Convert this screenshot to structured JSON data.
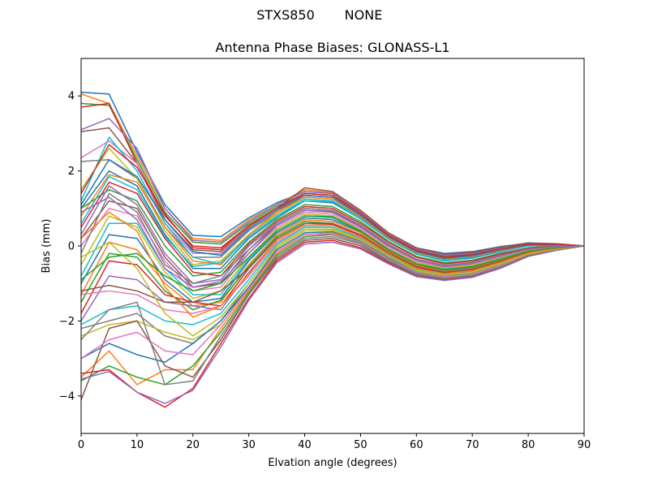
{
  "figure": {
    "suptitle_station": "STXS850",
    "suptitle_radome": "NONE"
  },
  "chart_data": {
    "type": "line",
    "title": "Antenna Phase Biases: GLONASS-L1",
    "xlabel": "Elvation angle (degrees)",
    "ylabel": "Bias (mm)",
    "xlim": [
      0,
      90
    ],
    "ylim": [
      -5,
      5
    ],
    "xticks": [
      0,
      10,
      20,
      30,
      40,
      50,
      60,
      70,
      80,
      90
    ],
    "yticks": [
      -4,
      -2,
      0,
      2,
      4
    ],
    "grid": false,
    "legend": "none",
    "x": [
      0,
      5,
      10,
      15,
      20,
      25,
      30,
      35,
      40,
      45,
      50,
      55,
      60,
      65,
      70,
      75,
      80,
      85,
      90
    ],
    "colors": [
      "#1f77b4",
      "#ff7f0e",
      "#2ca02c",
      "#d62728",
      "#9467bd",
      "#8c564b",
      "#e377c2",
      "#7f7f7f",
      "#bcbd22",
      "#17becf"
    ],
    "series": [
      {
        "values": [
          4.1,
          4.05,
          2.5,
          1.1,
          0.28,
          0.25,
          0.75,
          1.15,
          1.45,
          1.4,
          0.9,
          0.3,
          -0.05,
          -0.2,
          -0.15,
          -0.02,
          0.08,
          0.06,
          0.0
        ]
      },
      {
        "values": [
          4.05,
          3.8,
          2.4,
          1.0,
          0.2,
          0.15,
          0.7,
          1.1,
          1.5,
          1.42,
          0.92,
          0.32,
          -0.08,
          -0.25,
          -0.18,
          -0.04,
          0.06,
          0.05,
          0.0
        ]
      },
      {
        "values": [
          3.8,
          3.75,
          2.3,
          0.9,
          0.1,
          0.05,
          0.6,
          1.05,
          1.4,
          1.35,
          0.88,
          0.28,
          -0.1,
          -0.27,
          -0.2,
          -0.06,
          0.05,
          0.05,
          0.0
        ]
      },
      {
        "values": [
          3.7,
          3.8,
          2.2,
          0.8,
          0.0,
          -0.05,
          0.55,
          1.0,
          1.35,
          1.3,
          0.85,
          0.25,
          -0.12,
          -0.3,
          -0.22,
          -0.08,
          0.04,
          0.04,
          0.0
        ]
      },
      {
        "values": [
          3.1,
          3.4,
          2.6,
          1.0,
          0.15,
          0.1,
          0.65,
          1.1,
          1.45,
          1.4,
          0.9,
          0.3,
          -0.08,
          -0.25,
          -0.2,
          -0.05,
          0.06,
          0.05,
          0.0
        ]
      },
      {
        "values": [
          3.05,
          3.15,
          2.2,
          0.7,
          -0.1,
          -0.15,
          0.5,
          1.0,
          1.55,
          1.45,
          0.95,
          0.35,
          -0.05,
          -0.22,
          -0.17,
          -0.03,
          0.07,
          0.06,
          0.0
        ]
      },
      {
        "values": [
          2.35,
          2.8,
          2.2,
          0.6,
          -0.2,
          -0.2,
          0.45,
          0.95,
          1.4,
          1.35,
          0.85,
          0.28,
          -0.12,
          -0.3,
          -0.24,
          -0.08,
          0.04,
          0.05,
          0.0
        ]
      },
      {
        "values": [
          2.25,
          2.3,
          1.8,
          0.5,
          -0.3,
          -0.3,
          0.4,
          0.9,
          1.35,
          1.3,
          0.8,
          0.25,
          -0.15,
          -0.32,
          -0.26,
          -0.1,
          0.03,
          0.04,
          0.0
        ]
      },
      {
        "values": [
          1.5,
          2.6,
          1.8,
          0.4,
          -0.5,
          -0.4,
          0.3,
          0.85,
          1.3,
          1.25,
          0.78,
          0.22,
          -0.18,
          -0.35,
          -0.28,
          -0.12,
          0.02,
          0.04,
          0.0
        ]
      },
      {
        "values": [
          1.2,
          2.9,
          2.0,
          0.6,
          -0.3,
          -0.5,
          0.25,
          0.8,
          1.25,
          1.2,
          0.75,
          0.2,
          -0.2,
          -0.37,
          -0.3,
          -0.13,
          0.01,
          0.03,
          0.0
        ]
      },
      {
        "values": [
          1.0,
          2.0,
          1.6,
          0.3,
          -0.6,
          -0.6,
          0.2,
          0.75,
          1.2,
          1.15,
          0.72,
          0.18,
          -0.22,
          -0.4,
          -0.32,
          -0.15,
          0.0,
          0.03,
          0.0
        ]
      },
      {
        "values": [
          0.8,
          1.9,
          1.7,
          0.5,
          -0.4,
          -0.5,
          0.3,
          0.9,
          1.3,
          1.25,
          0.78,
          0.22,
          -0.18,
          -0.35,
          -0.28,
          -0.12,
          0.02,
          0.04,
          0.0
        ]
      },
      {
        "values": [
          1.0,
          1.5,
          1.2,
          0.0,
          -0.8,
          -0.7,
          0.1,
          0.7,
          1.1,
          1.05,
          0.65,
          0.12,
          -0.28,
          -0.45,
          -0.38,
          -0.2,
          -0.05,
          0.01,
          0.0
        ]
      },
      {
        "values": [
          0.5,
          1.7,
          1.4,
          0.2,
          -0.7,
          -0.8,
          0.05,
          0.65,
          1.05,
          1.0,
          0.6,
          0.1,
          -0.3,
          -0.48,
          -0.4,
          -0.22,
          -0.06,
          0.0,
          0.0
        ]
      },
      {
        "values": [
          0.3,
          1.6,
          1.1,
          -0.2,
          -1.0,
          -0.9,
          0.0,
          0.6,
          1.0,
          0.95,
          0.55,
          0.05,
          -0.35,
          -0.52,
          -0.44,
          -0.25,
          -0.08,
          -0.01,
          0.0
        ]
      },
      {
        "values": [
          0.2,
          1.2,
          1.0,
          -0.3,
          -1.1,
          -1.0,
          -0.1,
          0.55,
          0.95,
          0.9,
          0.5,
          0.0,
          -0.38,
          -0.55,
          -0.47,
          -0.27,
          -0.1,
          -0.02,
          0.0
        ]
      },
      {
        "values": [
          0.0,
          1.0,
          0.8,
          -0.4,
          -1.2,
          -1.1,
          -0.2,
          0.5,
          0.9,
          0.85,
          0.45,
          -0.05,
          -0.42,
          -0.58,
          -0.5,
          -0.3,
          -0.12,
          -0.03,
          0.0
        ]
      },
      {
        "values": [
          -0.2,
          1.4,
          0.9,
          -0.5,
          -1.0,
          -0.8,
          -0.1,
          0.6,
          1.0,
          0.95,
          0.55,
          0.05,
          -0.35,
          -0.52,
          -0.44,
          -0.25,
          -0.08,
          -0.01,
          0.0
        ]
      },
      {
        "values": [
          -0.5,
          0.8,
          0.5,
          -0.7,
          -1.4,
          -1.2,
          -0.3,
          0.45,
          0.85,
          0.8,
          0.42,
          -0.08,
          -0.45,
          -0.6,
          -0.52,
          -0.32,
          -0.13,
          -0.04,
          0.0
        ]
      },
      {
        "values": [
          -0.8,
          0.6,
          0.6,
          -0.6,
          -1.3,
          -1.3,
          -0.35,
          0.4,
          0.8,
          0.75,
          0.4,
          -0.1,
          -0.48,
          -0.62,
          -0.55,
          -0.34,
          -0.14,
          -0.05,
          0.0
        ]
      },
      {
        "values": [
          -1.0,
          0.3,
          0.2,
          -0.9,
          -1.5,
          -1.4,
          -0.4,
          0.35,
          0.75,
          0.7,
          0.38,
          -0.12,
          -0.5,
          -0.65,
          -0.58,
          -0.36,
          -0.15,
          -0.05,
          0.0
        ]
      },
      {
        "values": [
          -1.3,
          0.1,
          -0.1,
          -1.0,
          -1.6,
          -1.5,
          -0.5,
          0.3,
          0.7,
          0.65,
          0.35,
          -0.15,
          -0.52,
          -0.68,
          -0.6,
          -0.38,
          -0.16,
          -0.06,
          0.0
        ]
      },
      {
        "values": [
          -1.5,
          -0.2,
          -0.3,
          -1.2,
          -1.7,
          -1.45,
          -0.55,
          0.25,
          0.65,
          0.6,
          0.3,
          -0.18,
          -0.55,
          -0.7,
          -0.62,
          -0.4,
          -0.17,
          -0.06,
          0.0
        ]
      },
      {
        "values": [
          -1.8,
          -0.4,
          -0.5,
          -1.3,
          -1.5,
          -1.6,
          -0.6,
          0.2,
          0.6,
          0.58,
          0.28,
          -0.2,
          -0.58,
          -0.72,
          -0.64,
          -0.42,
          -0.18,
          -0.07,
          0.0
        ]
      },
      {
        "values": [
          -2.0,
          -0.8,
          -0.9,
          -1.5,
          -1.6,
          -1.7,
          -0.7,
          0.15,
          0.55,
          0.55,
          0.25,
          -0.22,
          -0.6,
          -0.74,
          -0.66,
          -0.44,
          -0.19,
          -0.07,
          0.0
        ]
      },
      {
        "values": [
          -1.2,
          -1.05,
          -1.2,
          -1.5,
          -1.5,
          -1.2,
          -0.6,
          0.2,
          0.6,
          0.6,
          0.3,
          -0.18,
          -0.55,
          -0.7,
          -0.62,
          -0.4,
          -0.17,
          -0.06,
          0.0
        ]
      },
      {
        "values": [
          -1.3,
          -1.2,
          -1.3,
          -1.7,
          -1.8,
          -1.6,
          -0.8,
          0.1,
          0.5,
          0.5,
          0.22,
          -0.25,
          -0.62,
          -0.76,
          -0.68,
          -0.46,
          -0.2,
          -0.08,
          0.0
        ]
      },
      {
        "values": [
          -2.2,
          -2.0,
          -1.8,
          -2.4,
          -2.6,
          -2.0,
          -1.0,
          0.0,
          0.45,
          0.45,
          0.18,
          -0.28,
          -0.65,
          -0.78,
          -0.7,
          -0.48,
          -0.21,
          -0.08,
          0.0
        ]
      },
      {
        "values": [
          -2.4,
          -2.1,
          -2.0,
          -2.3,
          -2.5,
          -2.1,
          -1.1,
          -0.05,
          0.4,
          0.42,
          0.15,
          -0.3,
          -0.67,
          -0.8,
          -0.72,
          -0.5,
          -0.22,
          -0.09,
          0.0
        ]
      },
      {
        "values": [
          -2.1,
          -1.7,
          -1.6,
          -2.0,
          -2.1,
          -1.8,
          -0.9,
          0.05,
          0.5,
          0.5,
          0.2,
          -0.26,
          -0.63,
          -0.77,
          -0.69,
          -0.47,
          -0.21,
          -0.08,
          0.0
        ]
      },
      {
        "values": [
          -3.0,
          -2.6,
          -2.9,
          -3.1,
          -2.6,
          -2.0,
          -1.1,
          -0.1,
          0.35,
          0.38,
          0.12,
          -0.32,
          -0.7,
          -0.82,
          -0.74,
          -0.52,
          -0.23,
          -0.09,
          0.0
        ]
      },
      {
        "values": [
          -3.5,
          -2.8,
          -3.7,
          -3.3,
          -3.3,
          -2.2,
          -1.2,
          -0.2,
          0.3,
          0.35,
          0.1,
          -0.35,
          -0.72,
          -0.85,
          -0.76,
          -0.54,
          -0.24,
          -0.1,
          0.0
        ]
      },
      {
        "values": [
          -3.6,
          -3.2,
          -3.5,
          -3.7,
          -3.2,
          -2.3,
          -1.25,
          -0.25,
          0.25,
          0.3,
          0.08,
          -0.37,
          -0.74,
          -0.86,
          -0.78,
          -0.55,
          -0.25,
          -0.1,
          0.0
        ]
      },
      {
        "values": [
          -3.4,
          -3.3,
          -3.9,
          -4.3,
          -3.8,
          -2.6,
          -1.4,
          -0.4,
          0.1,
          0.15,
          -0.05,
          -0.45,
          -0.8,
          -0.9,
          -0.82,
          -0.58,
          -0.27,
          -0.11,
          0.0
        ]
      },
      {
        "values": [
          -3.55,
          -3.35,
          -3.9,
          -4.2,
          -3.85,
          -2.7,
          -1.45,
          -0.45,
          0.05,
          0.1,
          -0.08,
          -0.48,
          -0.82,
          -0.92,
          -0.84,
          -0.6,
          -0.28,
          -0.12,
          0.0
        ]
      },
      {
        "values": [
          -4.1,
          -2.2,
          -2.0,
          -3.2,
          -3.5,
          -2.5,
          -1.3,
          -0.35,
          0.15,
          0.2,
          0.0,
          -0.42,
          -0.78,
          -0.88,
          -0.8,
          -0.57,
          -0.26,
          -0.1,
          0.0
        ]
      },
      {
        "values": [
          -3.0,
          -2.5,
          -2.3,
          -2.8,
          -2.9,
          -2.1,
          -1.15,
          -0.15,
          0.3,
          0.32,
          0.1,
          -0.35,
          -0.71,
          -0.83,
          -0.75,
          -0.53,
          -0.24,
          -0.09,
          0.0
        ]
      },
      {
        "values": [
          -2.5,
          -1.7,
          -1.5,
          -3.7,
          -3.6,
          -2.4,
          -1.3,
          -0.3,
          0.2,
          0.25,
          0.05,
          -0.4,
          -0.76,
          -0.87,
          -0.79,
          -0.56,
          -0.25,
          -0.1,
          0.0
        ]
      },
      {
        "values": [
          -0.3,
          0.1,
          -0.6,
          -1.8,
          -2.4,
          -1.9,
          -1.0,
          0.0,
          0.45,
          0.45,
          0.18,
          -0.28,
          -0.65,
          -0.78,
          -0.7,
          -0.48,
          -0.21,
          -0.08,
          0.0
        ]
      },
      {
        "values": [
          0.6,
          1.85,
          1.5,
          0.25,
          -0.55,
          -0.45,
          0.25,
          0.8,
          1.2,
          1.18,
          0.72,
          0.18,
          -0.22,
          -0.4,
          -0.33,
          -0.16,
          0.0,
          0.03,
          0.0
        ]
      },
      {
        "values": [
          1.1,
          2.3,
          1.85,
          0.7,
          -0.15,
          -0.25,
          0.45,
          0.95,
          1.35,
          1.3,
          0.82,
          0.25,
          -0.15,
          -0.33,
          -0.26,
          -0.1,
          0.03,
          0.04,
          0.0
        ]
      },
      {
        "values": [
          0.2,
          0.9,
          0.4,
          -1.1,
          -1.9,
          -1.6,
          -0.75,
          0.15,
          0.55,
          0.55,
          0.25,
          -0.22,
          -0.6,
          -0.74,
          -0.66,
          -0.44,
          -0.19,
          -0.07,
          0.0
        ]
      },
      {
        "values": [
          -0.9,
          -0.3,
          -0.2,
          -0.8,
          -1.2,
          -1.0,
          -0.3,
          0.4,
          0.8,
          0.78,
          0.4,
          -0.1,
          -0.48,
          -0.63,
          -0.55,
          -0.35,
          -0.14,
          -0.05,
          0.0
        ]
      },
      {
        "values": [
          1.4,
          2.7,
          2.1,
          0.85,
          -0.05,
          -0.1,
          0.55,
          1.0,
          1.4,
          1.35,
          0.87,
          0.28,
          -0.12,
          -0.3,
          -0.23,
          -0.08,
          0.04,
          0.05,
          0.0
        ]
      },
      {
        "values": [
          0.9,
          1.3,
          0.7,
          -0.6,
          -1.1,
          -0.95,
          -0.2,
          0.55,
          0.95,
          0.92,
          0.52,
          0.02,
          -0.37,
          -0.54,
          -0.46,
          -0.27,
          -0.09,
          -0.02,
          0.0
        ]
      }
    ]
  }
}
